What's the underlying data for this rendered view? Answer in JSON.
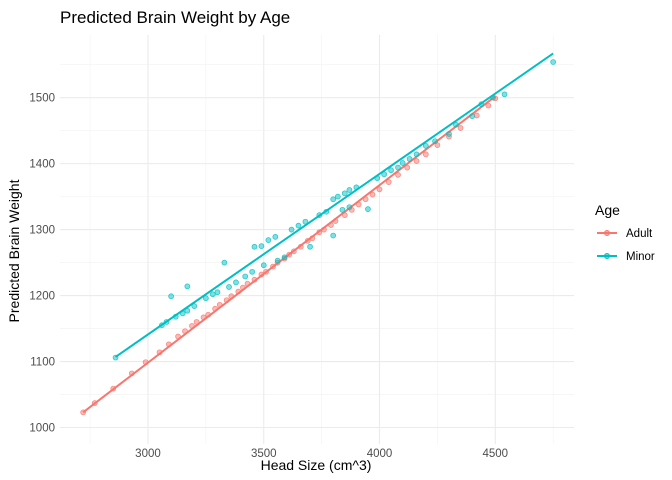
{
  "chart_data": {
    "type": "scatter",
    "title": "Predicted Brain Weight by Age",
    "xlabel": "Head Size (cm^3)",
    "ylabel": "Predicted Brain Weight",
    "xlim": [
      2620,
      4840
    ],
    "ylim": [
      975,
      1595
    ],
    "x_ticks": [
      3000,
      3500,
      4000,
      4500
    ],
    "y_ticks": [
      1000,
      1100,
      1200,
      1300,
      1400,
      1500
    ],
    "grid": true,
    "legend": {
      "title": "Age",
      "position": "right"
    },
    "series": [
      {
        "name": "Adult",
        "color": "#f8766d",
        "points": [
          [
            2720,
            1023
          ],
          [
            2770,
            1037
          ],
          [
            2850,
            1059
          ],
          [
            2930,
            1082
          ],
          [
            2990,
            1099
          ],
          [
            3050,
            1114
          ],
          [
            3090,
            1126
          ],
          [
            3130,
            1138
          ],
          [
            3160,
            1146
          ],
          [
            3190,
            1154
          ],
          [
            3210,
            1160
          ],
          [
            3240,
            1167
          ],
          [
            3260,
            1171
          ],
          [
            3290,
            1180
          ],
          [
            3310,
            1186
          ],
          [
            3340,
            1193
          ],
          [
            3360,
            1199
          ],
          [
            3390,
            1206
          ],
          [
            3410,
            1212
          ],
          [
            3430,
            1218
          ],
          [
            3460,
            1224
          ],
          [
            3490,
            1232
          ],
          [
            3510,
            1236
          ],
          [
            3540,
            1244
          ],
          [
            3560,
            1250
          ],
          [
            3590,
            1256
          ],
          [
            3610,
            1262
          ],
          [
            3630,
            1267
          ],
          [
            3660,
            1274
          ],
          [
            3690,
            1283
          ],
          [
            3710,
            1287
          ],
          [
            3740,
            1296
          ],
          [
            3760,
            1300
          ],
          [
            3790,
            1307
          ],
          [
            3810,
            1313
          ],
          [
            3850,
            1322
          ],
          [
            3880,
            1330
          ],
          [
            3910,
            1338
          ],
          [
            3940,
            1346
          ],
          [
            3970,
            1353
          ],
          [
            4000,
            1361
          ],
          [
            4040,
            1372
          ],
          [
            4080,
            1383
          ],
          [
            4120,
            1394
          ],
          [
            4160,
            1404
          ],
          [
            4200,
            1414
          ],
          [
            4250,
            1428
          ],
          [
            4300,
            1441
          ],
          [
            4350,
            1454
          ],
          [
            4420,
            1473
          ],
          [
            4470,
            1488
          ],
          [
            4500,
            1499
          ]
        ],
        "fit": [
          [
            2720,
            1023
          ],
          [
            4500,
            1502
          ]
        ]
      },
      {
        "name": "Minor",
        "color": "#00bfc4",
        "points": [
          [
            2860,
            1106
          ],
          [
            3060,
            1155
          ],
          [
            3080,
            1160
          ],
          [
            3100,
            1199
          ],
          [
            3120,
            1168
          ],
          [
            3150,
            1173
          ],
          [
            3170,
            1214
          ],
          [
            3170,
            1177
          ],
          [
            3200,
            1184
          ],
          [
            3250,
            1196
          ],
          [
            3280,
            1202
          ],
          [
            3300,
            1205
          ],
          [
            3330,
            1250
          ],
          [
            3350,
            1213
          ],
          [
            3380,
            1220
          ],
          [
            3420,
            1229
          ],
          [
            3450,
            1236
          ],
          [
            3460,
            1274
          ],
          [
            3490,
            1275
          ],
          [
            3520,
            1284
          ],
          [
            3550,
            1289
          ],
          [
            3500,
            1246
          ],
          [
            3560,
            1253
          ],
          [
            3590,
            1258
          ],
          [
            3620,
            1300
          ],
          [
            3650,
            1306
          ],
          [
            3680,
            1312
          ],
          [
            3700,
            1274
          ],
          [
            3740,
            1322
          ],
          [
            3770,
            1327
          ],
          [
            3800,
            1346
          ],
          [
            3820,
            1350
          ],
          [
            3850,
            1355
          ],
          [
            3870,
            1360
          ],
          [
            3900,
            1364
          ],
          [
            3800,
            1291
          ],
          [
            3840,
            1330
          ],
          [
            3870,
            1334
          ],
          [
            3950,
            1331
          ],
          [
            3990,
            1378
          ],
          [
            4020,
            1384
          ],
          [
            4050,
            1390
          ],
          [
            4080,
            1394
          ],
          [
            4100,
            1401
          ],
          [
            4130,
            1407
          ],
          [
            4160,
            1414
          ],
          [
            4200,
            1427
          ],
          [
            4240,
            1434
          ],
          [
            4300,
            1445
          ],
          [
            4330,
            1459
          ],
          [
            4400,
            1472
          ],
          [
            4440,
            1490
          ],
          [
            4490,
            1500
          ],
          [
            4540,
            1505
          ],
          [
            4750,
            1554
          ]
        ],
        "fit": [
          [
            2860,
            1107
          ],
          [
            4750,
            1567
          ]
        ]
      }
    ]
  }
}
